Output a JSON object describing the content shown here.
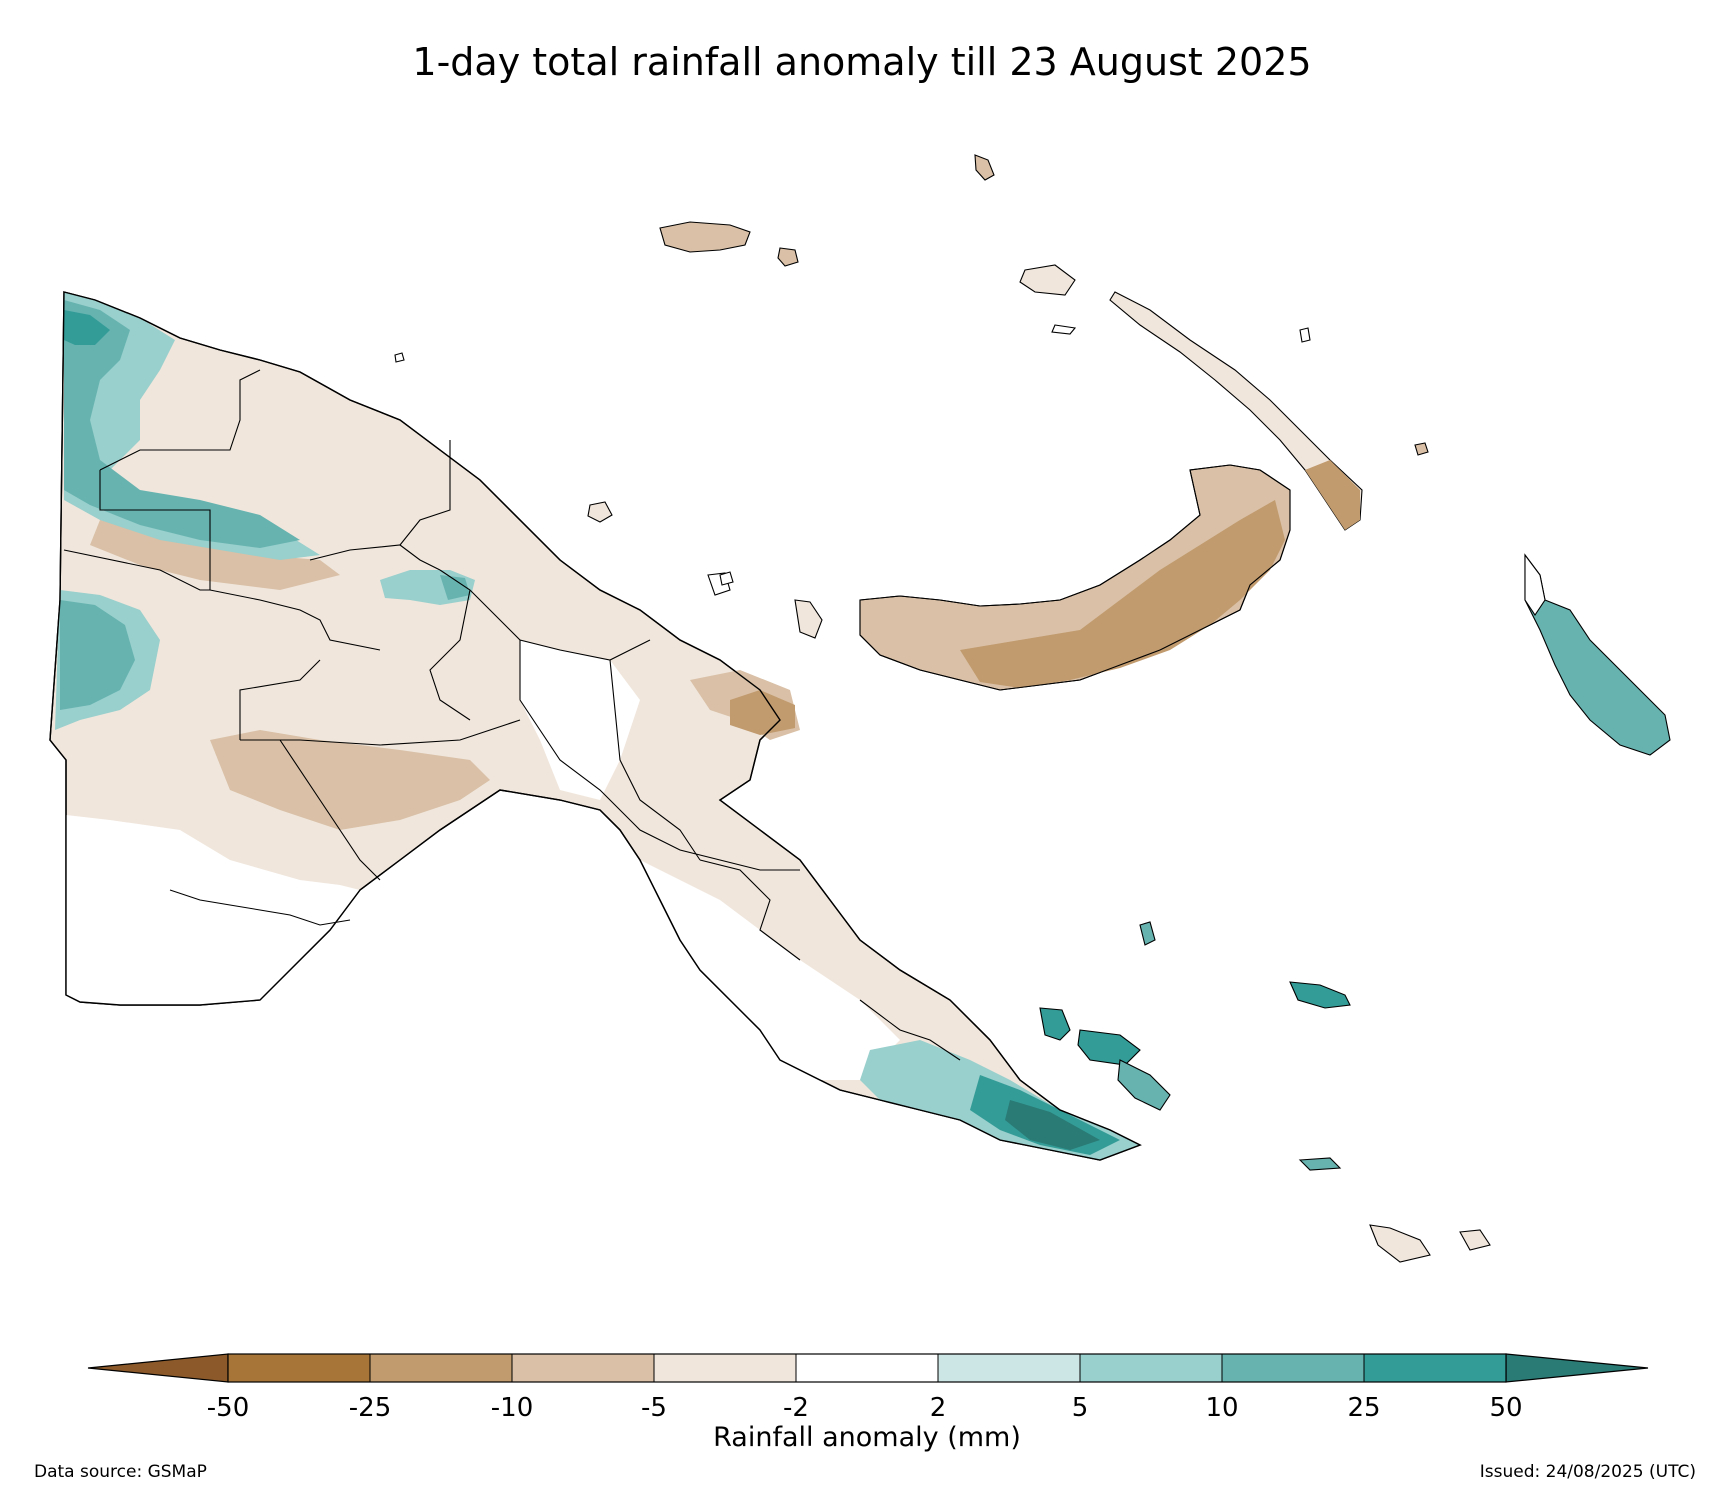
{
  "title": "1-day total rainfall anomaly till 23 August 2025",
  "colorbar": {
    "label": "Rainfall anomaly (mm)",
    "ticks": [
      "-50",
      "-25",
      "-10",
      "-5",
      "-2",
      "2",
      "5",
      "10",
      "25",
      "50"
    ],
    "under_color": "#8c5a2a",
    "over_color": "#2a7a75",
    "bins": [
      {
        "from": "-50",
        "to": "-25",
        "color": "#a87539"
      },
      {
        "from": "-25",
        "to": "-10",
        "color": "#c19a6d"
      },
      {
        "from": "-10",
        "to": "-5",
        "color": "#d9c0a6"
      },
      {
        "from": "-5",
        "to": "-2",
        "color": "#f0e6dc"
      },
      {
        "from": "-2",
        "to": "2",
        "color": "#ffffff"
      },
      {
        "from": "2",
        "to": "5",
        "color": "#cce6e5"
      },
      {
        "from": "5",
        "to": "10",
        "color": "#99cfcc"
      },
      {
        "from": "10",
        "to": "25",
        "color": "#66b3b0"
      },
      {
        "from": "25",
        "to": "50",
        "color": "#339c97"
      }
    ]
  },
  "footer": {
    "source": "Data source: GSMaP",
    "issued": "Issued: 24/08/2025 (UTC)"
  }
}
